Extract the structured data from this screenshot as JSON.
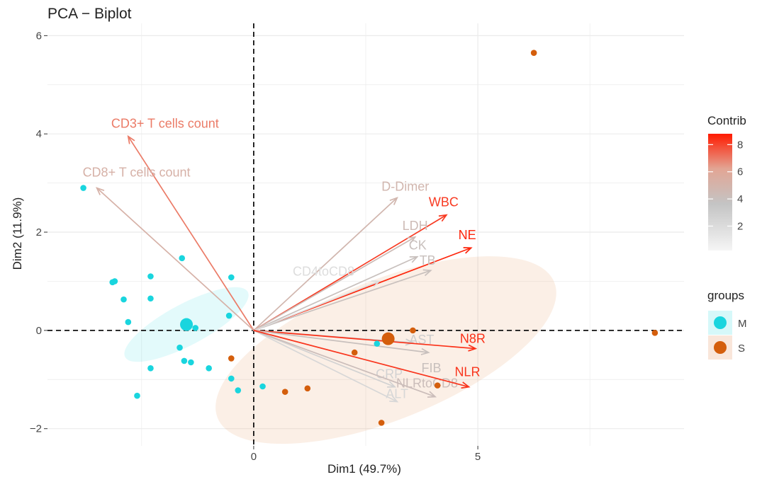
{
  "chart_data": {
    "type": "scatter",
    "title": "PCA − Biplot",
    "xlabel": "Dim1 (49.7%)",
    "ylabel": "Dim2 (11.9%)",
    "xlim": [
      -4.6,
      9.6
    ],
    "ylim": [
      -2.35,
      6.25
    ],
    "xticks": [
      0,
      5
    ],
    "yticks": [
      -2,
      0,
      2,
      4,
      6
    ],
    "ytick_labels": [
      "−2",
      "0",
      "2",
      "4",
      "6"
    ],
    "grid": true,
    "reference_lines": {
      "x": 0,
      "y": 0,
      "style": "dashed"
    },
    "groups": [
      {
        "name": "M",
        "color": "#19d5de",
        "points": [
          [
            -3.8,
            2.9
          ],
          [
            -3.15,
            0.98
          ],
          [
            -3.1,
            1.0
          ],
          [
            -2.9,
            0.63
          ],
          [
            -2.3,
            1.1
          ],
          [
            -2.3,
            0.65
          ],
          [
            -2.8,
            0.17
          ],
          [
            -1.6,
            1.47
          ],
          [
            -0.5,
            1.08
          ],
          [
            -0.55,
            0.3
          ],
          [
            -1.3,
            0.05
          ],
          [
            -1.65,
            -0.35
          ],
          [
            -1.55,
            -0.62
          ],
          [
            -1.4,
            -0.65
          ],
          [
            -1.0,
            -0.77
          ],
          [
            -0.5,
            -0.98
          ],
          [
            -0.35,
            -1.22
          ],
          [
            0.2,
            -1.14
          ],
          [
            -2.3,
            -0.77
          ],
          [
            -2.6,
            -1.33
          ],
          [
            2.75,
            -0.27
          ]
        ],
        "centroid": [
          -1.5,
          0.12
        ],
        "ellipse": {
          "center": [
            -1.5,
            0.12
          ],
          "rx": 1.55,
          "ry": 0.42,
          "angle_deg": 28
        }
      },
      {
        "name": "S",
        "color": "#d45e0c",
        "points": [
          [
            6.25,
            5.65
          ],
          [
            8.95,
            -0.05
          ],
          [
            3.55,
            0.0
          ],
          [
            2.25,
            -0.45
          ],
          [
            0.7,
            -1.25
          ],
          [
            1.2,
            -1.18
          ],
          [
            2.85,
            -1.88
          ],
          [
            -0.5,
            -0.57
          ],
          [
            4.1,
            -1.12
          ]
        ],
        "centroid": [
          3.0,
          -0.17
        ],
        "ellipse": {
          "center": [
            2.95,
            -0.4
          ],
          "rx": 4.05,
          "ry": 1.42,
          "angle_deg": 22
        }
      }
    ],
    "variables": [
      {
        "name": "CD3+ T cells count",
        "x": -2.8,
        "y": 3.95,
        "contrib": 7.0
      },
      {
        "name": "CD8+ T  cells count",
        "x": -3.5,
        "y": 2.9,
        "contrib": 5.2
      },
      {
        "name": "D-Dimer",
        "x": 3.2,
        "y": 2.7,
        "contrib": 4.8
      },
      {
        "name": "WBC",
        "x": 4.3,
        "y": 2.35,
        "contrib": 8.2
      },
      {
        "name": "LDH",
        "x": 3.6,
        "y": 1.9,
        "contrib": 4.4
      },
      {
        "name": "CK",
        "x": 3.65,
        "y": 1.5,
        "contrib": 4.0
      },
      {
        "name": "NE",
        "x": 4.85,
        "y": 1.68,
        "contrib": 8.6
      },
      {
        "name": "TB",
        "x": 3.95,
        "y": 1.22,
        "contrib": 4.0
      },
      {
        "name": "CD4toCD8",
        "x": 2.8,
        "y": 1.0,
        "contrib": 1.8
      },
      {
        "name": "AST",
        "x": 3.55,
        "y": -0.25,
        "contrib": 3.0
      },
      {
        "name": "N8R",
        "x": 4.95,
        "y": -0.37,
        "contrib": 8.4
      },
      {
        "name": "FIB",
        "x": 3.9,
        "y": -0.45,
        "contrib": 4.0
      },
      {
        "name": "CRP",
        "x": 3.15,
        "y": -1.15,
        "contrib": 2.6
      },
      {
        "name": "ALT",
        "x": 3.2,
        "y": -1.45,
        "contrib": 2.2
      },
      {
        "name": "NLRtoCD8",
        "x": 4.05,
        "y": -1.35,
        "contrib": 4.2
      },
      {
        "name": "NLR",
        "x": 4.8,
        "y": -1.15,
        "contrib": 8.3
      }
    ],
    "color_legend": {
      "title": "Contrib",
      "range": [
        0.2,
        8.8
      ],
      "ticks": [
        2,
        4,
        6,
        8
      ],
      "colors": [
        "#f2f2f2",
        "#c4c4c4",
        "#e2a594",
        "#ff1a00"
      ]
    },
    "group_legend": {
      "title": "groups",
      "entries": [
        "M",
        "S"
      ]
    }
  }
}
